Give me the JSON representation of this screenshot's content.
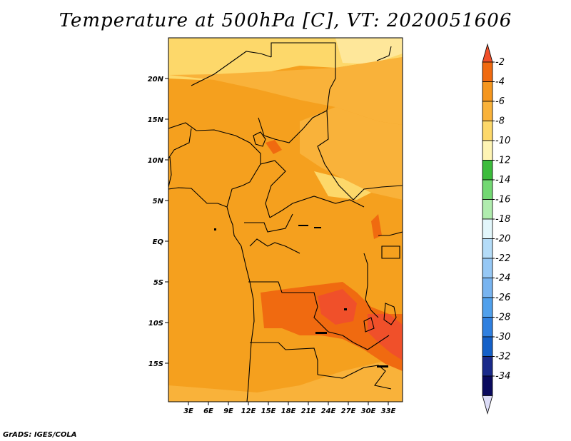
{
  "title": "Temperature at 500hPa [C], VT: 2020051606",
  "credit": "GrADS: IGES/COLA",
  "map": {
    "lat_labels": [
      "20N",
      "15N",
      "10N",
      "5N",
      "EQ",
      "5S",
      "10S",
      "15S"
    ],
    "lon_labels": [
      "3E",
      "6E",
      "9E",
      "12E",
      "15E",
      "18E",
      "21E",
      "24E",
      "27E",
      "30E",
      "33E"
    ]
  },
  "colorbar": {
    "levels": [
      "-2",
      "-4",
      "-6",
      "-8",
      "-10",
      "-12",
      "-14",
      "-16",
      "-18",
      "-20",
      "-22",
      "-24",
      "-26",
      "-28",
      "-30",
      "-32",
      "-34"
    ],
    "colors": [
      "#f0502a",
      "#f06a10",
      "#f5961e",
      "#f9b23a",
      "#fdd86a",
      "#fef4b4",
      "#3cbc3c",
      "#73d873",
      "#b0ecae",
      "#e2f6fb",
      "#b4dcf8",
      "#96c8f5",
      "#78b4f0",
      "#50a0ec",
      "#2f80e0",
      "#1460c8",
      "#1a2a8a",
      "#0a0a5e",
      "#ddddf8"
    ]
  }
}
